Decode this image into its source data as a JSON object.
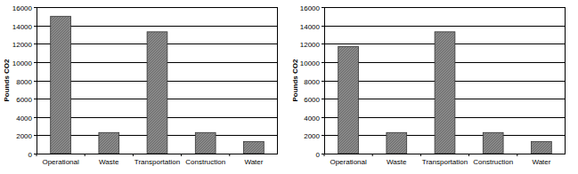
{
  "chart_data": [
    {
      "type": "bar",
      "y_label": "Pounds CO2",
      "categories": [
        "Operational",
        "Waste",
        "Transportation",
        "Construction",
        "Water"
      ],
      "values": [
        15000,
        2300,
        13300,
        2300,
        1300
      ],
      "color": "#8a8a8a",
      "ylim": [
        0,
        16000
      ],
      "yticks": [
        0,
        2000,
        4000,
        6000,
        8000,
        10000,
        12000,
        14000,
        16000
      ],
      "grid": true
    },
    {
      "type": "bar",
      "y_label": "Pounds CO2",
      "categories": [
        "Operational",
        "Waste",
        "Transportation",
        "Construction",
        "Water"
      ],
      "values": [
        11700,
        2300,
        13300,
        2300,
        1300
      ],
      "color": "#8a8a8a",
      "ylim": [
        0,
        16000
      ],
      "yticks": [
        0,
        2000,
        4000,
        6000,
        8000,
        10000,
        12000,
        14000,
        16000
      ],
      "grid": true
    }
  ]
}
